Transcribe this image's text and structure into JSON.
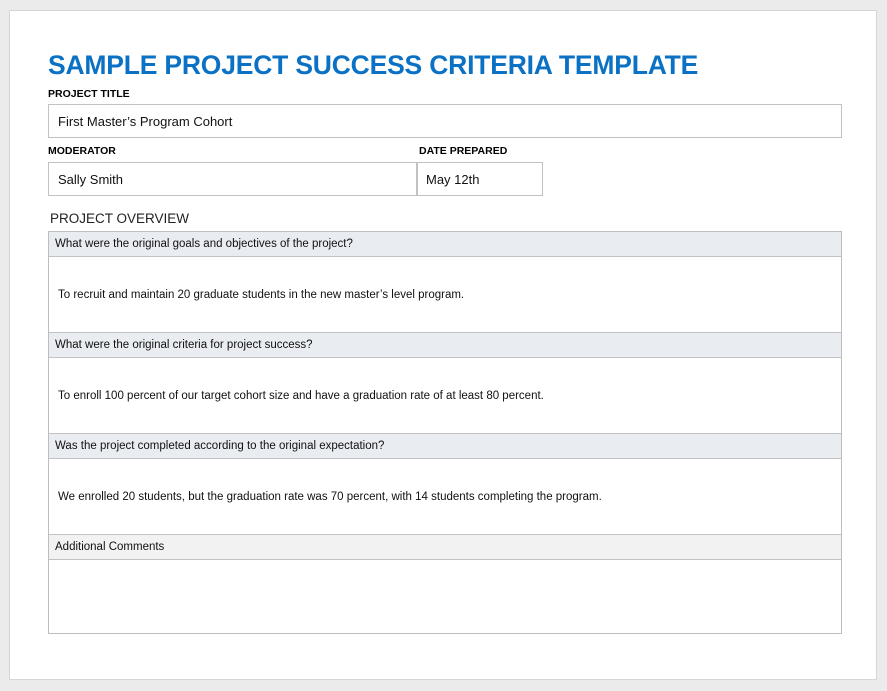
{
  "title": "SAMPLE PROJECT SUCCESS CRITERIA TEMPLATE",
  "project_title": {
    "label": "PROJECT TITLE",
    "value": "First Master’s Program Cohort"
  },
  "moderator": {
    "label": "MODERATOR",
    "value": "Sally Smith"
  },
  "date_prepared": {
    "label": "DATE PREPARED",
    "value": "May 12th"
  },
  "overview": {
    "label": "PROJECT OVERVIEW",
    "sections": [
      {
        "question": "What were the original goals and objectives of the project?",
        "answer": "To recruit and maintain 20 graduate students in the new master’s level program."
      },
      {
        "question": "What were the original criteria for project success?",
        "answer": "To enroll 100 percent of our target cohort size and have a graduation rate of at least 80 percent."
      },
      {
        "question": "Was the project completed according to the original expectation?",
        "answer": "We enrolled 20 students, but the graduation rate was 70 percent, with 14 students completing the program."
      },
      {
        "question": "Additional Comments",
        "answer": ""
      }
    ]
  },
  "colors": {
    "title": "#0a71c4",
    "question_bg": "#e9ecf0",
    "comments_bg": "#f2f2f2"
  }
}
